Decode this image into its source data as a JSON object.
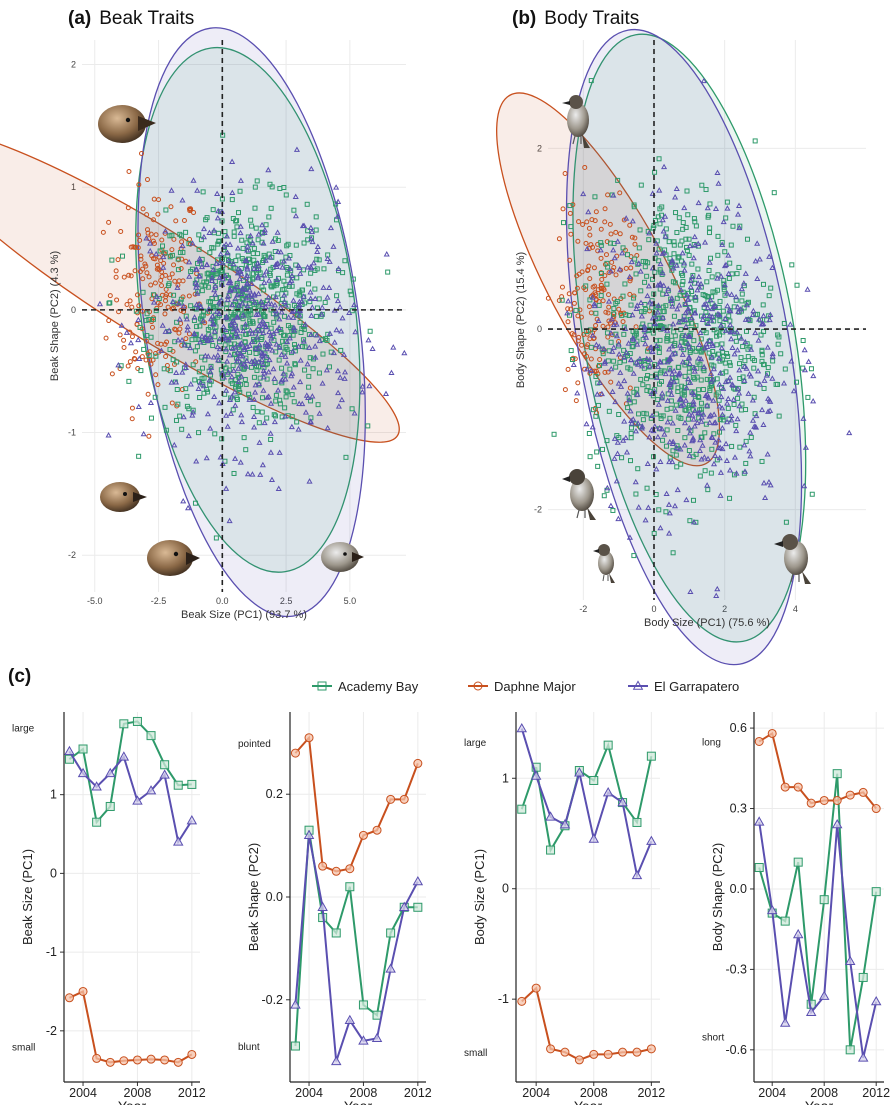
{
  "panels": {
    "a": {
      "tag": "(a)",
      "title": "Beak Traits"
    },
    "b": {
      "tag": "(b)",
      "title": "Body Traits"
    },
    "c": {
      "tag": "(c)"
    }
  },
  "colors": {
    "academy": "#2e9a6a",
    "daphne": "#c8501e",
    "garrapatero": "#5a4fb0"
  },
  "legend": [
    {
      "name": "Academy Bay",
      "color": "#2e9a6a",
      "marker": "square"
    },
    {
      "name": "Daphne Major",
      "color": "#c8501e",
      "marker": "circle"
    },
    {
      "name": "El Garrapatero",
      "color": "#5a4fb0",
      "marker": "triangle"
    }
  ],
  "chart_data": [
    {
      "id": "a",
      "type": "scatter",
      "xlabel": "Beak Size (PC1) (93.7 %)",
      "ylabel": "Beak Shape (PC2) (4.3 %)",
      "xlim": [
        -5.5,
        7.2
      ],
      "ylim": [
        -2.3,
        2.2
      ],
      "xticks": [
        -5.0,
        -2.5,
        0.0,
        2.5,
        5.0
      ],
      "xtick_labels": [
        "-5.0",
        "-2.5",
        "0.0",
        "2.5",
        "5.0"
      ],
      "yticks": [
        -2,
        -1,
        0,
        1,
        2
      ],
      "ytick_labels": [
        "-2",
        "-1",
        "0",
        "1",
        "2"
      ],
      "clusters": [
        {
          "name": "Daphne Major",
          "center": [
            -2.6,
            0.15
          ],
          "spread": [
            0.9,
            0.45
          ],
          "n": 190
        },
        {
          "name": "Academy Bay",
          "center": [
            0.8,
            -0.05
          ],
          "spread": [
            1.8,
            0.45
          ],
          "n": 650
        },
        {
          "name": "El Garrapatero",
          "center": [
            1.2,
            -0.15
          ],
          "spread": [
            2.0,
            0.5
          ],
          "n": 520
        }
      ],
      "ellipses": [
        {
          "name": "Daphne Major",
          "center": [
            -2.55,
            0.2
          ],
          "radii": [
            2.1,
            1.05
          ],
          "angle": 58
        },
        {
          "name": "Academy Bay",
          "center": [
            1.0,
            0.0
          ],
          "radii": [
            5.4,
            0.98
          ],
          "angle": 8
        },
        {
          "name": "El Garrapatero",
          "center": [
            1.15,
            -0.1
          ],
          "radii": [
            5.8,
            1.1
          ],
          "angle": 8
        }
      ]
    },
    {
      "id": "b",
      "type": "scatter",
      "xlabel": "Body Size (PC1) (75.6 %)",
      "ylabel": "Body Shape (PC2) (15.4 %)",
      "xlim": [
        -3.0,
        6.0
      ],
      "ylim": [
        -3.0,
        3.2
      ],
      "xticks": [
        -2,
        0,
        2,
        4
      ],
      "xtick_labels": [
        "-2",
        "0",
        "2",
        "4"
      ],
      "yticks": [
        -2,
        0,
        2
      ],
      "ytick_labels": [
        "-2",
        "0",
        "2"
      ],
      "clusters": [
        {
          "name": "Daphne Major",
          "center": [
            -1.7,
            0.35
          ],
          "spread": [
            0.55,
            0.55
          ],
          "n": 180
        },
        {
          "name": "Academy Bay",
          "center": [
            0.8,
            -0.1
          ],
          "spread": [
            1.3,
            0.8
          ],
          "n": 650
        },
        {
          "name": "El Garrapatero",
          "center": [
            0.9,
            -0.3
          ],
          "spread": [
            1.4,
            0.85
          ],
          "n": 520
        }
      ],
      "ellipses": [
        {
          "name": "Daphne Major",
          "center": [
            -1.3,
            0.55
          ],
          "radii": [
            1.7,
            1.05
          ],
          "angle": 28
        },
        {
          "name": "Academy Bay",
          "center": [
            1.0,
            -0.1
          ],
          "radii": [
            3.8,
            1.55
          ],
          "angle": 10
        },
        {
          "name": "El Garrapatero",
          "center": [
            0.85,
            -0.2
          ],
          "radii": [
            3.85,
            1.62
          ],
          "angle": 10
        }
      ]
    },
    {
      "id": "c1",
      "type": "line",
      "xlabel": "Year",
      "ylabel": "Beak Size (PC1)",
      "xlim": [
        2002.6,
        2012.6
      ],
      "ylim": [
        -2.65,
        2.05
      ],
      "xticks": [
        2004,
        2008,
        2012
      ],
      "xtick_labels": [
        "2004",
        "2008",
        "2012"
      ],
      "yticks": [
        -2,
        -1,
        0,
        1
      ],
      "ytick_labels": [
        "-2",
        "-1",
        "0",
        "1"
      ],
      "top_label": "large",
      "bottom_label": "small",
      "top_value": 1.85,
      "bottom_value": -2.2,
      "x": [
        2003,
        2004,
        2005,
        2006,
        2007,
        2008,
        2009,
        2010,
        2011,
        2012
      ],
      "series": [
        {
          "name": "Academy Bay",
          "values": [
            1.45,
            1.58,
            0.65,
            0.85,
            1.9,
            1.93,
            1.75,
            1.38,
            1.12,
            1.13
          ]
        },
        {
          "name": "Daphne Major",
          "values": [
            -1.58,
            -1.5,
            -2.35,
            -2.4,
            -2.38,
            -2.37,
            -2.36,
            -2.37,
            -2.4,
            -2.3
          ]
        },
        {
          "name": "El Garrapatero",
          "values": [
            1.55,
            1.27,
            1.1,
            1.27,
            1.48,
            0.92,
            1.05,
            1.25,
            0.4,
            0.67
          ]
        }
      ]
    },
    {
      "id": "c2",
      "type": "line",
      "xlabel": "Year",
      "ylabel": "Beak Shape (PC2)",
      "xlim": [
        2002.6,
        2012.6
      ],
      "ylim": [
        -0.36,
        0.36
      ],
      "xticks": [
        2004,
        2008,
        2012
      ],
      "xtick_labels": [
        "2004",
        "2008",
        "2012"
      ],
      "yticks": [
        -0.2,
        0.0,
        0.2
      ],
      "ytick_labels": [
        "-0.2",
        "0.0",
        "0.2"
      ],
      "top_label": "pointed",
      "bottom_label": "blunt",
      "top_value": 0.3,
      "bottom_value": -0.29,
      "x": [
        2003,
        2004,
        2005,
        2006,
        2007,
        2008,
        2009,
        2010,
        2011,
        2012
      ],
      "series": [
        {
          "name": "Academy Bay",
          "values": [
            -0.29,
            0.13,
            -0.04,
            -0.07,
            0.02,
            -0.21,
            -0.23,
            -0.07,
            -0.02,
            -0.02
          ]
        },
        {
          "name": "Daphne Major",
          "values": [
            0.28,
            0.31,
            0.06,
            0.05,
            0.055,
            0.12,
            0.13,
            0.19,
            0.19,
            0.26
          ]
        },
        {
          "name": "El Garrapatero",
          "values": [
            -0.21,
            0.12,
            -0.02,
            -0.32,
            -0.24,
            -0.28,
            -0.275,
            -0.14,
            -0.02,
            0.03
          ]
        }
      ]
    },
    {
      "id": "c3",
      "type": "line",
      "xlabel": "Year",
      "ylabel": "Body Size (PC1)",
      "xlim": [
        2002.6,
        2012.6
      ],
      "ylim": [
        -1.75,
        1.6
      ],
      "xticks": [
        2004,
        2008,
        2012
      ],
      "xtick_labels": [
        "2004",
        "2008",
        "2012"
      ],
      "yticks": [
        -1,
        0,
        1
      ],
      "ytick_labels": [
        "-1",
        "0",
        "1"
      ],
      "top_label": "large",
      "bottom_label": "small",
      "top_value": 1.33,
      "bottom_value": -1.48,
      "x": [
        2003,
        2004,
        2005,
        2006,
        2007,
        2008,
        2009,
        2010,
        2011,
        2012
      ],
      "series": [
        {
          "name": "Academy Bay",
          "values": [
            0.72,
            1.1,
            0.35,
            0.57,
            1.07,
            0.98,
            1.3,
            0.78,
            0.6,
            1.2
          ]
        },
        {
          "name": "Daphne Major",
          "values": [
            -1.02,
            -0.9,
            -1.45,
            -1.48,
            -1.55,
            -1.5,
            -1.5,
            -1.48,
            -1.48,
            -1.45
          ]
        },
        {
          "name": "El Garrapatero",
          "values": [
            1.45,
            1.02,
            0.65,
            0.58,
            1.05,
            0.45,
            0.87,
            0.78,
            0.12,
            0.43
          ]
        }
      ]
    },
    {
      "id": "c4",
      "type": "line",
      "xlabel": "Year",
      "ylabel": "Body Shape (PC2)",
      "xlim": [
        2002.6,
        2012.6
      ],
      "ylim": [
        -0.72,
        0.66
      ],
      "xticks": [
        2004,
        2008,
        2012
      ],
      "xtick_labels": [
        "2004",
        "2008",
        "2012"
      ],
      "yticks": [
        -0.6,
        -0.3,
        0.0,
        0.3,
        0.6
      ],
      "ytick_labels": [
        "-0.6",
        "-0.3",
        "0.0",
        "0.3",
        "0.6"
      ],
      "top_label": "long",
      "bottom_label": "short",
      "top_value": 0.55,
      "bottom_value": -0.55,
      "x": [
        2003,
        2004,
        2005,
        2006,
        2007,
        2008,
        2009,
        2010,
        2011,
        2012
      ],
      "series": [
        {
          "name": "Academy Bay",
          "values": [
            0.08,
            -0.09,
            -0.12,
            0.1,
            -0.43,
            -0.04,
            0.43,
            -0.6,
            -0.33,
            -0.01
          ]
        },
        {
          "name": "Daphne Major",
          "values": [
            0.55,
            0.58,
            0.38,
            0.38,
            0.32,
            0.33,
            0.33,
            0.35,
            0.36,
            0.3
          ]
        },
        {
          "name": "El Garrapatero",
          "values": [
            0.25,
            -0.08,
            -0.5,
            -0.17,
            -0.46,
            -0.4,
            0.24,
            -0.27,
            -0.63,
            -0.42
          ]
        }
      ]
    }
  ]
}
